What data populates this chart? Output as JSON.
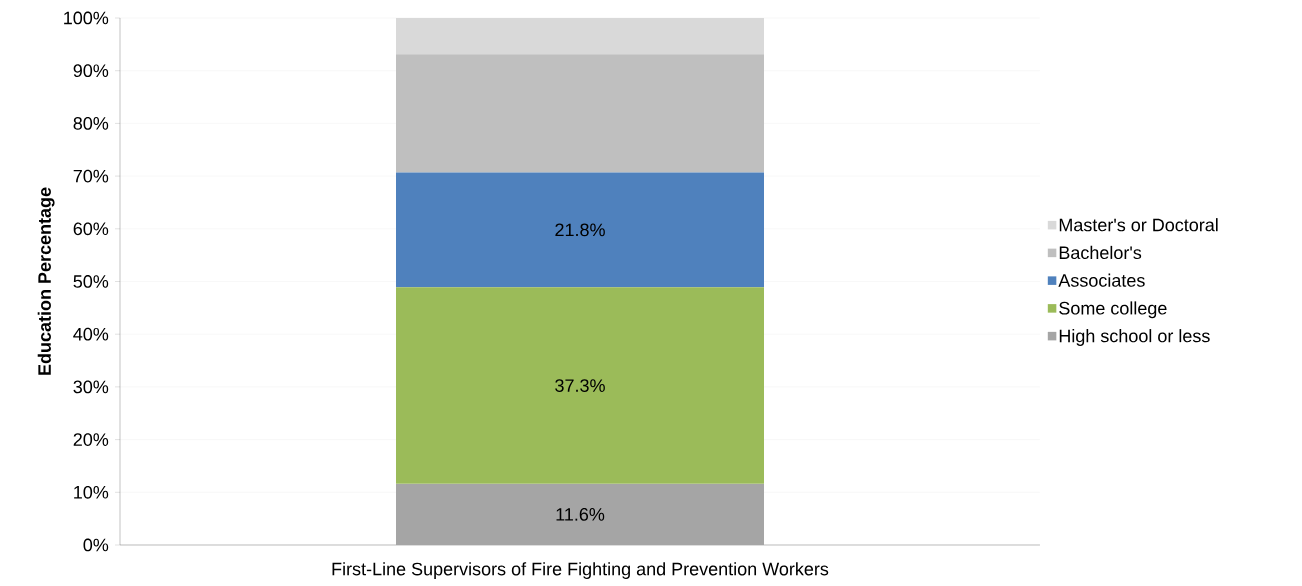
{
  "chart_data": {
    "type": "bar",
    "stacked": true,
    "categories": [
      "First-Line Supervisors of Fire Fighting and Prevention Workers"
    ],
    "ylabel": "Education Percentage",
    "ylim": [
      0,
      100
    ],
    "yticks": [
      {
        "value": 0,
        "label": "0%"
      },
      {
        "value": 10,
        "label": "10%"
      },
      {
        "value": 20,
        "label": "20%"
      },
      {
        "value": 30,
        "label": "30%"
      },
      {
        "value": 40,
        "label": "40%"
      },
      {
        "value": 50,
        "label": "50%"
      },
      {
        "value": 60,
        "label": "60%"
      },
      {
        "value": 70,
        "label": "70%"
      },
      {
        "value": 80,
        "label": "80%"
      },
      {
        "value": 90,
        "label": "90%"
      },
      {
        "value": 100,
        "label": "100%"
      }
    ],
    "grid": "y",
    "legend": "right",
    "series": [
      {
        "name": "High school or less",
        "color": "#a5a5a5",
        "values": [
          11.6
        ],
        "value_labels": [
          "11.6%"
        ]
      },
      {
        "name": "Some college",
        "color": "#9bbb59",
        "values": [
          37.3
        ],
        "value_labels": [
          "37.3%"
        ]
      },
      {
        "name": "Associates",
        "color": "#4f81bd",
        "values": [
          21.8
        ],
        "value_labels": [
          "21.8%"
        ]
      },
      {
        "name": "Bachelor's",
        "color": "#bfbfbf",
        "values": [
          22.4
        ],
        "value_labels": [
          null
        ]
      },
      {
        "name": "Master's or Doctoral",
        "color": "#d9d9d9",
        "values": [
          6.9
        ],
        "value_labels": [
          null
        ]
      }
    ]
  }
}
